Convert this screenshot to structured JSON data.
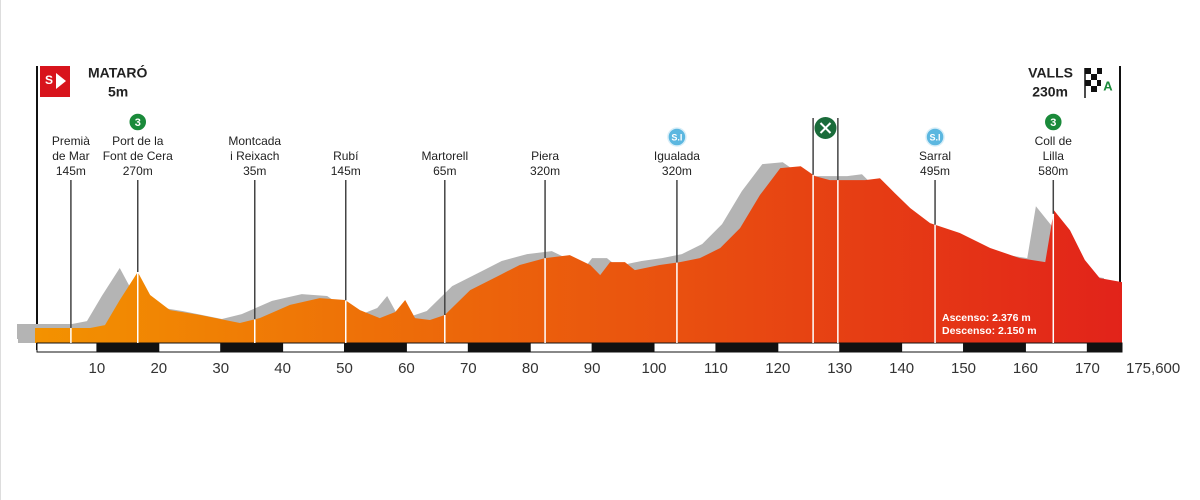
{
  "start": {
    "name": "MATARÓ",
    "elevation": "5m",
    "badge": "S"
  },
  "finish": {
    "name": "VALLS",
    "elevation": "230m",
    "badge": "A"
  },
  "chart_data": {
    "type": "area",
    "x": [
      0,
      8.9,
      11.3,
      13.7,
      16.6,
      18.6,
      21.8,
      26.7,
      33.1,
      36.3,
      41.2,
      46.0,
      50.1,
      52.5,
      55.7,
      58.2,
      59.8,
      61.4,
      63.8,
      66.2,
      70.3,
      75.1,
      78.3,
      82.4,
      86.4,
      89.7,
      91.3,
      92.9,
      95.3,
      96.9,
      100.9,
      104.2,
      107.4,
      110.7,
      113.9,
      117.1,
      120.4,
      123.7,
      126.0,
      128.4,
      134.1,
      136.5,
      138.9,
      141.4,
      144.6,
      149.4,
      154.3,
      159.1,
      163.2,
      164.6,
      167.2,
      169.6,
      172.0,
      175.6
    ],
    "values": [
      64,
      64,
      76,
      183,
      302,
      204,
      140,
      119,
      85,
      106,
      162,
      191,
      183,
      140,
      106,
      132,
      183,
      106,
      98,
      119,
      225,
      289,
      332,
      361,
      374,
      332,
      289,
      344,
      344,
      310,
      332,
      344,
      361,
      404,
      489,
      629,
      744,
      752,
      710,
      693,
      693,
      701,
      638,
      574,
      510,
      468,
      404,
      361,
      344,
      565,
      480,
      353,
      276,
      259
    ],
    "colors": [
      "#f39200",
      "#e2231a"
    ],
    "xlim": [
      0,
      175.6
    ],
    "ylim": [
      0,
      800
    ],
    "xticks": [
      10,
      20,
      30,
      40,
      50,
      60,
      70,
      80,
      90,
      100,
      110,
      120,
      130,
      140,
      150,
      160,
      170,
      {
        "value": 175.6,
        "label": "175,600"
      }
    ],
    "waypoints": [
      {
        "km": 5.8,
        "lines": [
          "Premià",
          "de Mar"
        ],
        "elevation": "145m"
      },
      {
        "km": 16.6,
        "lines": [
          "Port de la",
          "Font de Cera"
        ],
        "elevation": "270m",
        "badge": "3"
      },
      {
        "km": 35.5,
        "lines": [
          "Montcada",
          "i Reixach"
        ],
        "elevation": "35m"
      },
      {
        "km": 50.2,
        "lines": [
          "Rubí"
        ],
        "elevation": "145m"
      },
      {
        "km": 66.2,
        "lines": [
          "Martorell"
        ],
        "elevation": "65m"
      },
      {
        "km": 82.4,
        "lines": [
          "Piera"
        ],
        "elevation": "320m"
      },
      {
        "km": 103.7,
        "lines": [
          "Igualada"
        ],
        "elevation": "320m",
        "badge": "S.I"
      },
      {
        "km": 145.4,
        "lines": [
          "Sarral"
        ],
        "elevation": "495m",
        "badge": "S.I"
      },
      {
        "km": 164.5,
        "lines": [
          "Coll de",
          "Lilla"
        ],
        "elevation": "580m",
        "badge": "3"
      }
    ],
    "feed_zone": [
      125.7,
      129.7
    ],
    "stats": [
      "Ascenso: 2.376 m",
      "Descenso: 2.150 m"
    ]
  }
}
